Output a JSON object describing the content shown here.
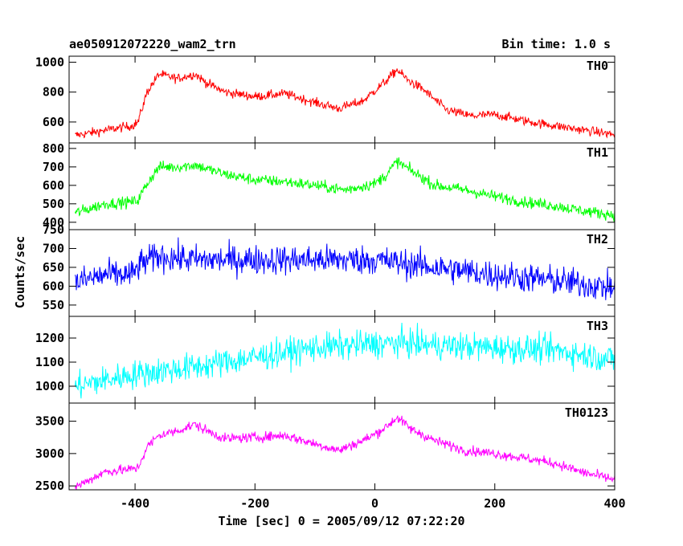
{
  "header": {
    "title": "ae050912072220_wam2_trn",
    "bin_time": "Bin time: 1.0 s"
  },
  "chart_data": {
    "type": "line",
    "xlabel": "Time [sec] 0 = 2005/09/12 07:22:20",
    "ylabel": "Counts/sec",
    "xlim": [
      -510,
      400
    ],
    "x_ticks": [
      -400,
      -200,
      0,
      200,
      400
    ],
    "panels": [
      {
        "name": "TH0",
        "color": "#ff0000",
        "ylim": [
          460,
          1040
        ],
        "y_ticks": [
          600,
          800,
          1000
        ],
        "noise": 22,
        "x": [
          -500,
          -450,
          -405,
          -395,
          -380,
          -360,
          -330,
          -300,
          -280,
          -250,
          -200,
          -150,
          -100,
          -60,
          -20,
          0,
          20,
          37,
          55,
          80,
          120,
          160,
          200,
          260,
          300,
          350,
          400
        ],
        "values": [
          510,
          545,
          575,
          600,
          800,
          920,
          890,
          920,
          860,
          800,
          770,
          790,
          730,
          690,
          740,
          810,
          880,
          950,
          880,
          820,
          680,
          640,
          650,
          600,
          575,
          545,
          515
        ]
      },
      {
        "name": "TH1",
        "color": "#00ff00",
        "ylim": [
          360,
          830
        ],
        "y_ticks": [
          400,
          500,
          600,
          700,
          800
        ],
        "noise": 22,
        "x": [
          -500,
          -450,
          -405,
          -395,
          -380,
          -360,
          -330,
          -300,
          -250,
          -200,
          -150,
          -100,
          -50,
          0,
          20,
          37,
          60,
          100,
          150,
          200,
          250,
          300,
          350,
          400
        ],
        "values": [
          450,
          500,
          510,
          520,
          610,
          700,
          700,
          710,
          660,
          630,
          620,
          600,
          575,
          610,
          660,
          730,
          680,
          600,
          575,
          540,
          510,
          490,
          460,
          440
        ]
      },
      {
        "name": "TH2",
        "color": "#0000ff",
        "ylim": [
          520,
          750
        ],
        "y_ticks": [
          550,
          600,
          650,
          700,
          750
        ],
        "noise": 28,
        "x": [
          -500,
          -450,
          -405,
          -390,
          -360,
          -300,
          -200,
          -100,
          0,
          50,
          100,
          200,
          300,
          400
        ],
        "values": [
          610,
          630,
          630,
          660,
          680,
          670,
          670,
          670,
          670,
          660,
          650,
          630,
          615,
          595
        ]
      },
      {
        "name": "TH3",
        "color": "#00ffff",
        "ylim": [
          930,
          1290
        ],
        "y_ticks": [
          1000,
          1100,
          1200
        ],
        "noise": 42,
        "x": [
          -500,
          -400,
          -300,
          -200,
          -100,
          0,
          50,
          100,
          200,
          300,
          400
        ],
        "values": [
          1000,
          1050,
          1080,
          1120,
          1160,
          1175,
          1180,
          1170,
          1160,
          1150,
          1110
        ]
      },
      {
        "name": "TH0123",
        "color": "#ff00ff",
        "ylim": [
          2440,
          3780
        ],
        "y_ticks": [
          2500,
          3000,
          3500
        ],
        "noise": 55,
        "x": [
          -500,
          -450,
          -405,
          -395,
          -380,
          -360,
          -330,
          -300,
          -280,
          -250,
          -200,
          -150,
          -100,
          -60,
          -20,
          0,
          20,
          37,
          60,
          100,
          150,
          200,
          250,
          300,
          350,
          400
        ],
        "values": [
          2480,
          2720,
          2760,
          2780,
          3100,
          3280,
          3350,
          3450,
          3350,
          3230,
          3250,
          3280,
          3150,
          3050,
          3200,
          3300,
          3420,
          3560,
          3380,
          3200,
          3050,
          3000,
          2930,
          2850,
          2700,
          2600
        ]
      }
    ]
  }
}
